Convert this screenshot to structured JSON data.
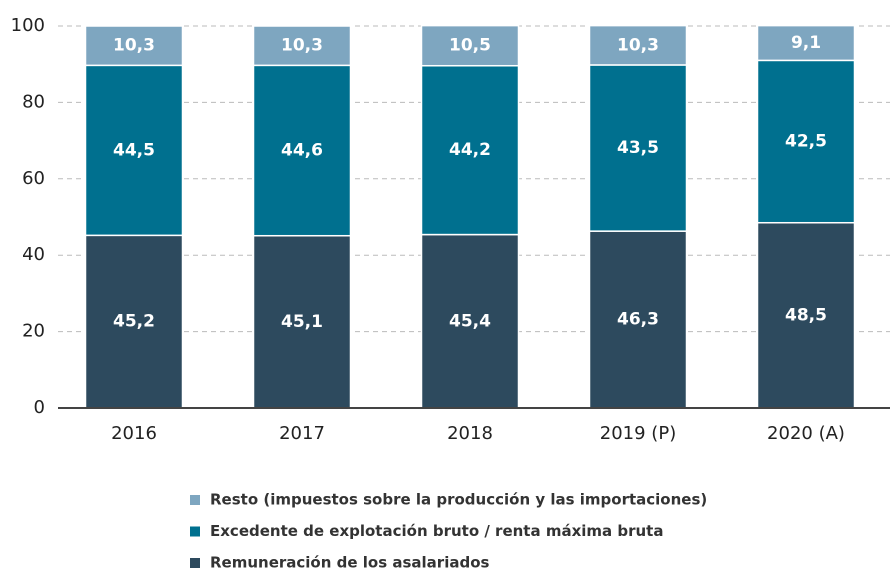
{
  "chart_data": {
    "type": "stacked_bar",
    "categories": [
      "2016",
      "2017",
      "2018",
      "2019 (P)",
      "2020 (A)"
    ],
    "series": [
      {
        "name": "Remuneración de los asalariados",
        "color": "#2d4a5e",
        "values": [
          45.2,
          45.1,
          45.4,
          46.3,
          48.5
        ],
        "value_labels": [
          "45,2",
          "45,1",
          "45,4",
          "46,3",
          "48,5"
        ]
      },
      {
        "name": "Excedente de explotación bruto / renta máxima bruta",
        "color": "#00708f",
        "values": [
          44.5,
          44.6,
          44.2,
          43.5,
          42.5
        ],
        "value_labels": [
          "44,5",
          "44,6",
          "44,2",
          "43,5",
          "42,5"
        ]
      },
      {
        "name": "Resto (impuestos sobre la producción y las importaciones)",
        "color": "#7ea6c0",
        "values": [
          10.3,
          10.3,
          10.5,
          10.3,
          9.1
        ],
        "value_labels": [
          "10,3",
          "10,3",
          "10,5",
          "10,3",
          "9,1"
        ]
      }
    ],
    "ylim": [
      0,
      100
    ],
    "yticks": [
      0,
      20,
      40,
      60,
      80,
      100
    ],
    "grid": true
  }
}
